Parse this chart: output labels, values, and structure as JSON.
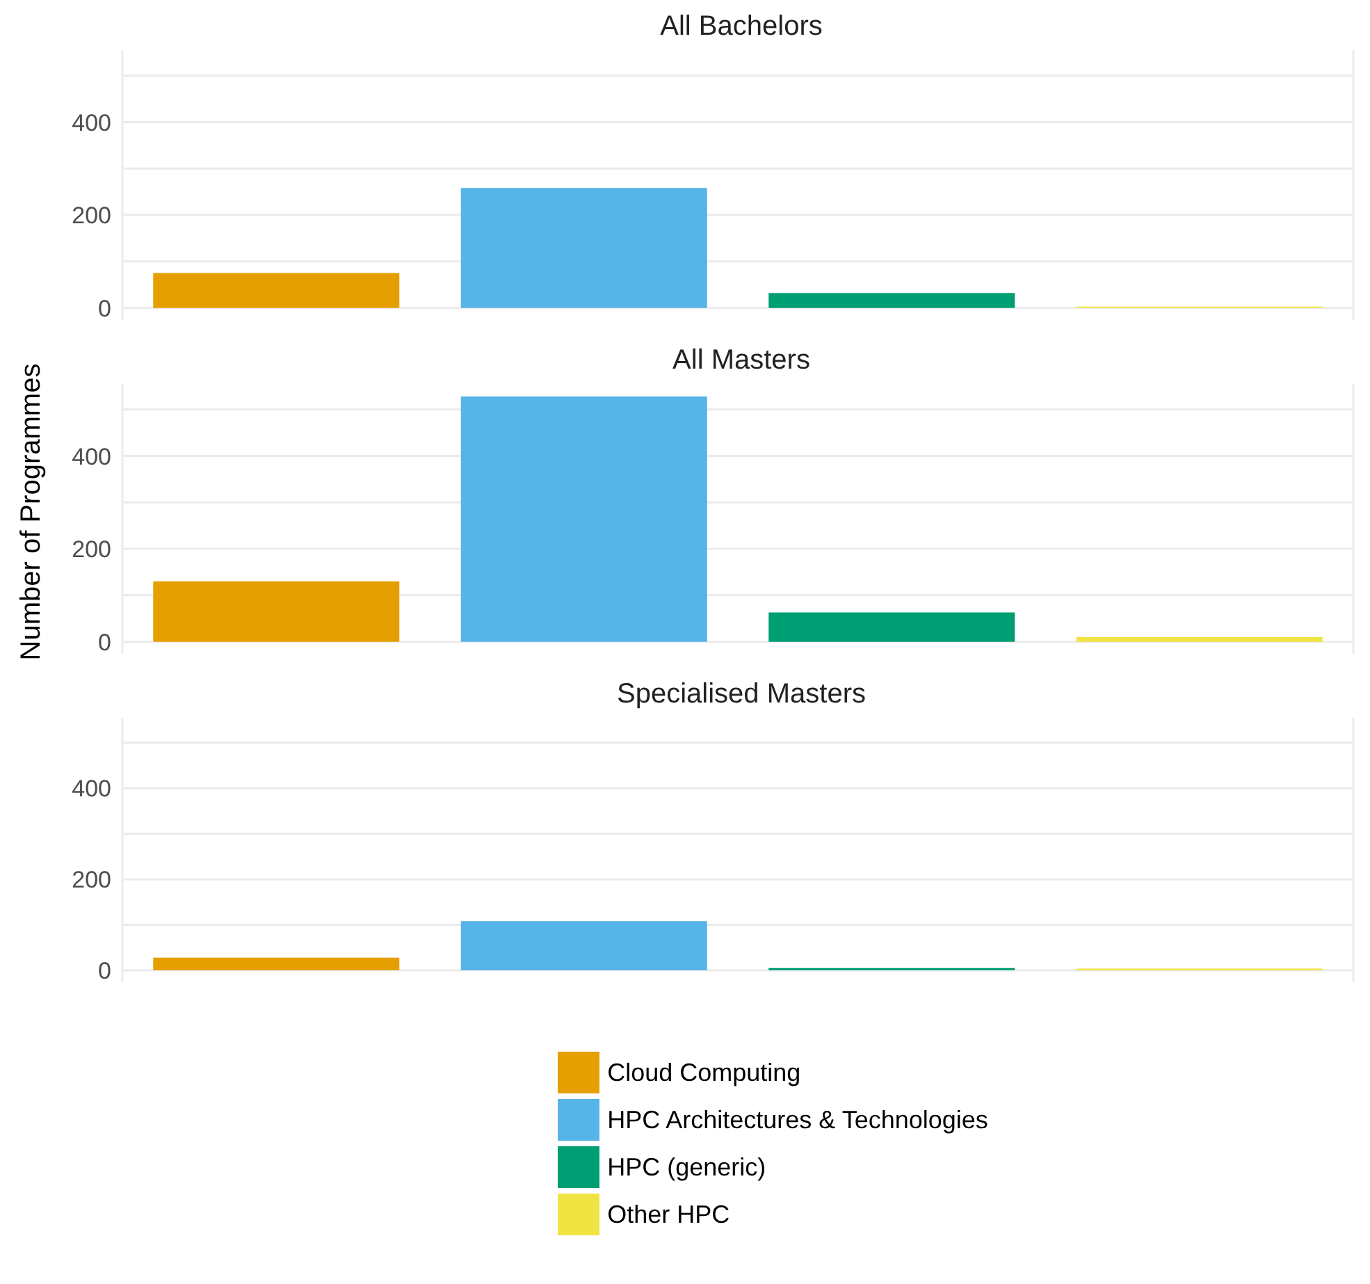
{
  "chart_data": [
    {
      "type": "bar",
      "title": "All Bachelors",
      "categories": [
        null,
        null,
        null,
        null
      ],
      "stacked": true,
      "ylim": [
        -26,
        555
      ],
      "yticks": [
        0,
        {
          "value": 100,
          "label": null
        },
        200,
        {
          "value": 300,
          "label": null
        },
        400,
        {
          "value": 500,
          "label": null
        }
      ],
      "grid": true,
      "legend": false,
      "tick_labels": "y",
      "series": [
        {
          "color": "#e69f00",
          "values": [
            75,
            null,
            null,
            null
          ]
        },
        {
          "color": "#56b4e9",
          "values": [
            null,
            258,
            null,
            null
          ]
        },
        {
          "color": "#009e73",
          "values": [
            null,
            null,
            32,
            null
          ]
        },
        {
          "color": "#f0e442",
          "values": [
            null,
            null,
            null,
            3
          ]
        }
      ]
    },
    {
      "type": "bar",
      "title": "All Masters",
      "ylabel": "Number of Programmes",
      "categories": [
        null,
        null,
        null,
        null
      ],
      "stacked": true,
      "ylim": [
        -26,
        555
      ],
      "yticks": [
        0,
        {
          "value": 100,
          "label": null
        },
        200,
        {
          "value": 300,
          "label": null
        },
        400,
        {
          "value": 500,
          "label": null
        }
      ],
      "grid": true,
      "legend": false,
      "tick_labels": "y",
      "series": [
        {
          "color": "#e69f00",
          "values": [
            130,
            null,
            null,
            null
          ]
        },
        {
          "color": "#56b4e9",
          "values": [
            null,
            528,
            null,
            null
          ]
        },
        {
          "color": "#009e73",
          "values": [
            null,
            null,
            63,
            null
          ]
        },
        {
          "color": "#f0e442",
          "values": [
            null,
            null,
            null,
            10
          ]
        }
      ]
    },
    {
      "type": "bar",
      "title": "Specialised Masters",
      "categories": [
        null,
        null,
        null,
        null
      ],
      "stacked": true,
      "ylim": [
        -26,
        555
      ],
      "yticks": [
        0,
        {
          "value": 100,
          "label": null
        },
        200,
        {
          "value": 300,
          "label": null
        },
        400,
        {
          "value": 500,
          "label": null
        }
      ],
      "grid": true,
      "legend": "bottom",
      "tick_labels": "y",
      "series": [
        {
          "name": "Cloud Computing",
          "color": "#e69f00",
          "values": [
            28,
            null,
            null,
            null
          ]
        },
        {
          "name": "HPC Architectures & Technologies",
          "color": "#56b4e9",
          "values": [
            null,
            108,
            null,
            null
          ]
        },
        {
          "name": "HPC (generic)",
          "color": "#009e73",
          "values": [
            null,
            null,
            5,
            null
          ]
        },
        {
          "name": "Other HPC",
          "color": "#f0e442",
          "values": [
            null,
            null,
            null,
            4
          ]
        }
      ]
    }
  ]
}
